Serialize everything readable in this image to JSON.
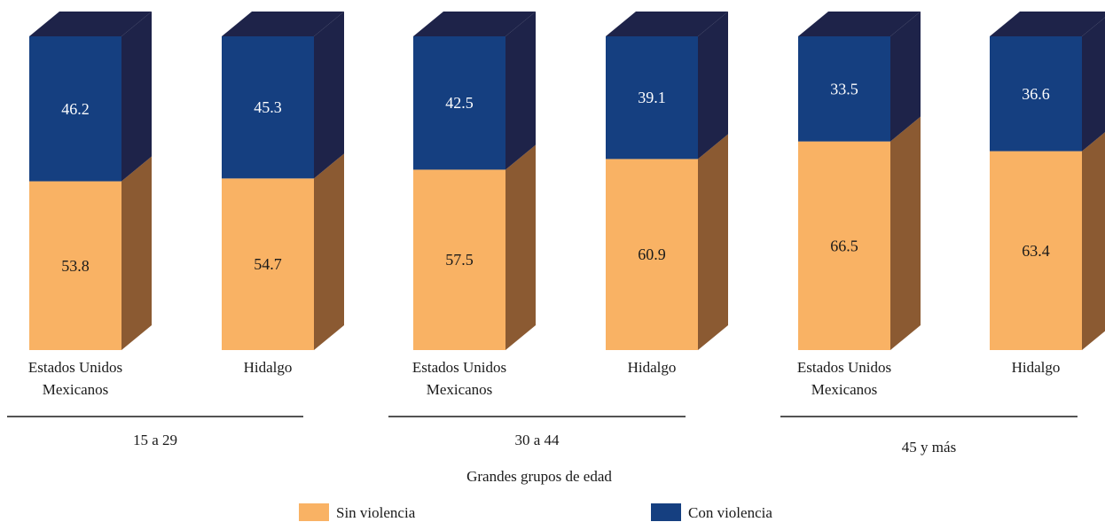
{
  "chart_data": {
    "type": "bar",
    "stacked": true,
    "three_d": true,
    "xlabel": "Grandes grupos de edad",
    "ylabel": "",
    "ylim": [
      0,
      100
    ],
    "grid": false,
    "legend_position": "bottom",
    "groups": [
      {
        "label": "15 a 29",
        "categories": [
          "Estados Unidos Mexicanos",
          "Hidalgo"
        ]
      },
      {
        "label": "30 a 44",
        "categories": [
          "Estados Unidos Mexicanos",
          "Hidalgo"
        ]
      },
      {
        "label": "45 y más",
        "categories": [
          "Estados Unidos Mexicanos",
          "Hidalgo"
        ]
      }
    ],
    "category_labels": [
      [
        "Estados Unidos",
        "Mexicanos"
      ],
      [
        "Hidalgo"
      ],
      [
        "Estados Unidos",
        "Mexicanos"
      ],
      [
        "Hidalgo"
      ],
      [
        "Estados Unidos",
        "Mexicanos"
      ],
      [
        "Hidalgo"
      ]
    ],
    "series": [
      {
        "name": "Sin violencia",
        "color": "#f9b264",
        "side_color": "#8b5a32",
        "text_color": "#1a1a1a",
        "values": [
          53.8,
          54.7,
          57.5,
          60.9,
          66.5,
          63.4
        ],
        "labels": [
          "53.8",
          "54.7",
          "57.5",
          "60.9",
          "66.5",
          "63.4"
        ]
      },
      {
        "name": "Con violencia",
        "color": "#153f80",
        "side_color": "#1e2349",
        "text_color": "#ffffff",
        "values": [
          46.2,
          45.3,
          42.5,
          39.1,
          33.5,
          36.6
        ],
        "labels": [
          "46.2",
          "45.3",
          "42.5",
          "39.1",
          "33.5",
          "36.6"
        ]
      }
    ]
  }
}
